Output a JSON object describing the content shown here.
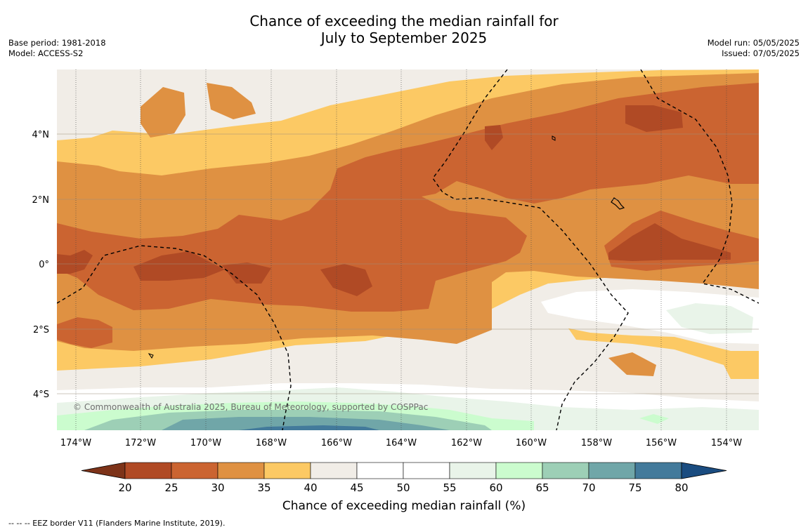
{
  "title": {
    "line1": "Chance of exceeding the median rainfall for",
    "line2": "July to September 2025"
  },
  "meta_left": {
    "base_period": "Base period: 1981-2018",
    "model": "Model: ACCESS-S2"
  },
  "meta_right": {
    "model_run": "Model run: 05/05/2025",
    "issued": "Issued: 07/05/2025"
  },
  "map": {
    "lat_labels": [
      "4°N",
      "2°N",
      "0°",
      "2°S",
      "4°S"
    ],
    "lon_labels": [
      "174°W",
      "172°W",
      "170°W",
      "168°W",
      "166°W",
      "164°W",
      "162°W",
      "160°W",
      "158°W",
      "156°W",
      "154°W"
    ],
    "copyright": "© Commonwealth of Australia 2025, Bureau of Meteorology, supported by COSPPac"
  },
  "colorbar": {
    "tick_labels": [
      "20",
      "25",
      "30",
      "35",
      "40",
      "45",
      "50",
      "55",
      "60",
      "65",
      "70",
      "75",
      "80"
    ],
    "colors": [
      "#7d3319",
      "#b04a25",
      "#cb6431",
      "#df9142",
      "#fcc964",
      "#f1ede7",
      "#ffffff",
      "#ffffff",
      "#e9f4e9",
      "#cbfcce",
      "#9dcfb6",
      "#70a6a8",
      "#437a9b",
      "#1a4c80"
    ],
    "label": "Chance of exceeding median rainfall (%)"
  },
  "footnote": "--  --  -- EEZ border V11 (Flanders Marine Institute, 2019)."
}
